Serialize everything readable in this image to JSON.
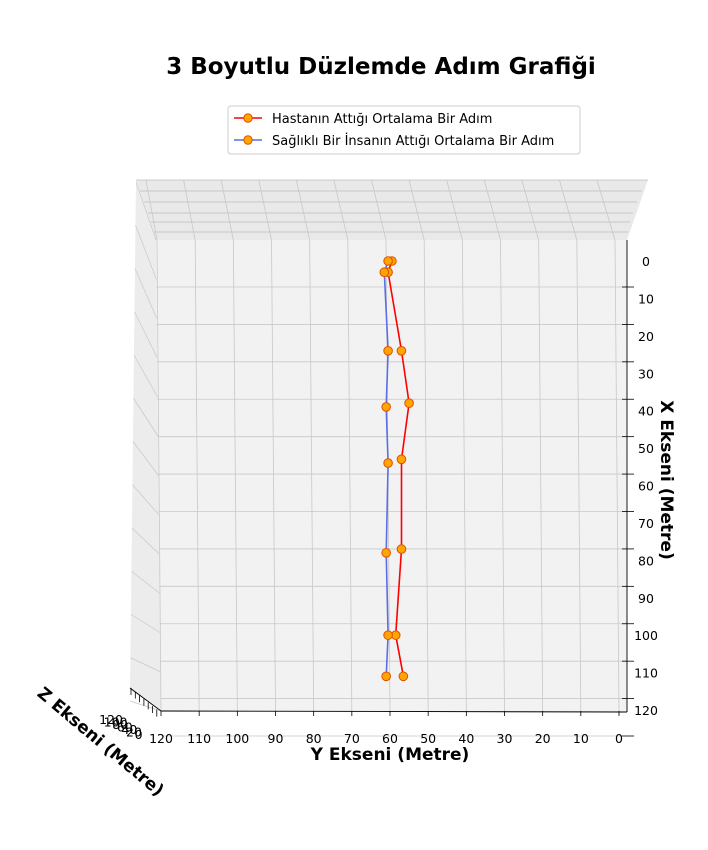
{
  "chart_data": {
    "type": "line",
    "title": "3 Boyutlu Düzlemde Adım Grafiği",
    "xlabel": "Y Ekseni (Metre)",
    "ylabel": "X Ekseni (Metre)",
    "zlabel": "Z Ekseni (Metre)",
    "y_axis_ticks": [
      120,
      110,
      100,
      90,
      80,
      70,
      60,
      50,
      40,
      30,
      20,
      10,
      0
    ],
    "x_axis_ticks": [
      0,
      10,
      20,
      30,
      40,
      50,
      60,
      70,
      80,
      90,
      100,
      110,
      120
    ],
    "z_axis_ticks": [
      120,
      100,
      80,
      60,
      40,
      20,
      0
    ],
    "y_range": [
      0,
      120
    ],
    "x_range": [
      0,
      120
    ],
    "grid": true,
    "legend_position": "top-center",
    "series": [
      {
        "name": "Hastanın Attığı Ortalama Bir Adım",
        "color": "#ff0000",
        "marker_face": "#ffa500",
        "marker_edge": "#e05000",
        "points": [
          {
            "y": 59.5,
            "x": 0
          },
          {
            "y": 60.5,
            "x": 3
          },
          {
            "y": 57,
            "x": 24
          },
          {
            "y": 55,
            "x": 38
          },
          {
            "y": 57,
            "x": 53
          },
          {
            "y": 57,
            "x": 77
          },
          {
            "y": 58.5,
            "x": 100
          },
          {
            "y": 56.5,
            "x": 111
          }
        ]
      },
      {
        "name": "Sağlıklı Bir İnsanın Attığı Ortalama Bir Adım",
        "color": "#5b6ee6",
        "marker_face": "#ffa500",
        "marker_edge": "#e05000",
        "points": [
          {
            "y": 60.5,
            "x": 0
          },
          {
            "y": 61.5,
            "x": 3
          },
          {
            "y": 60.5,
            "x": 24
          },
          {
            "y": 61,
            "x": 39
          },
          {
            "y": 60.5,
            "x": 54
          },
          {
            "y": 61,
            "x": 78
          },
          {
            "y": 60.5,
            "x": 100
          },
          {
            "y": 61,
            "x": 111
          }
        ]
      }
    ]
  }
}
